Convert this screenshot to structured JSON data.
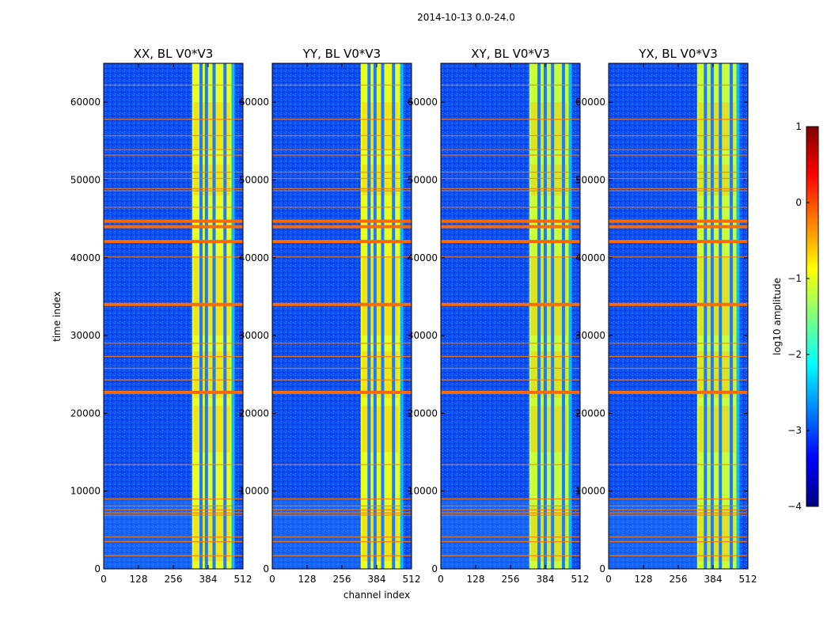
{
  "chart_data": {
    "type": "heatmap",
    "suptitle": "2014-10-13 0.0-24.0",
    "xlabel": "channel index",
    "ylabel": "time index",
    "x_range": [
      0,
      512
    ],
    "y_range": [
      0,
      65000
    ],
    "x_ticks": [
      "0",
      "128",
      "256",
      "384",
      "512"
    ],
    "y_ticks": [
      "0",
      "10000",
      "20000",
      "30000",
      "40000",
      "50000",
      "60000"
    ],
    "panels": [
      {
        "title": "XX, BL V0*V3",
        "band": [
          325,
          470
        ],
        "dark_cols": [
          352,
          372,
          400,
          440
        ],
        "band_cyan": false
      },
      {
        "title": "YY, BL V0*V3",
        "band": [
          325,
          470
        ],
        "dark_cols": [
          350,
          372,
          400,
          440
        ],
        "band_cyan": false
      },
      {
        "title": "XY, BL V0*V3",
        "band": [
          325,
          470
        ],
        "dark_cols": [
          355,
          378,
          405,
          445
        ],
        "band_cyan": true
      },
      {
        "title": "YX, BL V0*V3",
        "band": [
          325,
          470
        ],
        "dark_cols": [
          350,
          375,
          405,
          445
        ],
        "band_cyan": true
      }
    ],
    "rfi_rows_thick": [
      44700,
      44000,
      42100,
      34000,
      22700
    ],
    "rfi_rows_thin": [
      62200,
      57800,
      55700,
      53900,
      53200,
      51000,
      50200,
      48900,
      48600,
      46500,
      40100,
      29000,
      27300,
      25800,
      24300,
      13400,
      9000,
      8100,
      7600,
      7200,
      6900,
      4100,
      3500,
      1700
    ],
    "colorbar": {
      "label": "log10 amplitude",
      "range": [
        -4,
        1
      ],
      "ticks": [
        "−4",
        "−3",
        "−2",
        "−1",
        "0",
        "1"
      ],
      "colormap": [
        "#00007f",
        "#0000ff",
        "#007fff",
        "#00ffff",
        "#7fff7f",
        "#ffff00",
        "#ff7f00",
        "#ff0000",
        "#7f0000"
      ]
    }
  }
}
